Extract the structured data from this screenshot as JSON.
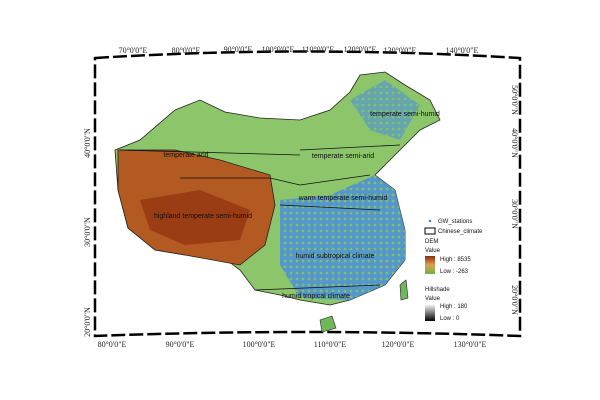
{
  "graticule": {
    "top": [
      "70°0'0\"E",
      "80°0'0\"E",
      "90°0'0\"E",
      "100°0'0\"E",
      "110°0'0\"E",
      "120°0'0\"E",
      "130°0'0\"E",
      "140°0'0\"E"
    ],
    "bottom": [
      "80°0'0\"E",
      "90°0'0\"E",
      "100°0'0\"E",
      "110°0'0\"E",
      "120°0'0\"E",
      "130°0'0\"E"
    ],
    "left": [
      "40°0'0\"N",
      "30°0'0\"N",
      "20°0'0\"N"
    ],
    "right": [
      "50°0'0\"N",
      "40°0'0\"N",
      "30°0'0\"N",
      "20°0'0\"N"
    ]
  },
  "regions": [
    "temperate semi-humid",
    "temperate arid",
    "temperate semi-arid",
    "warm temperate semi-humid",
    "highland temperate semi-humid",
    "humid subtropical climate",
    "humid tropical climate"
  ],
  "legend": {
    "stations": "GW_stations",
    "climate": "Chinese_climate",
    "dem": {
      "title": "DEM",
      "value": "Value",
      "high": "High : 8535",
      "low": "Low : -263"
    },
    "hillshade": {
      "title": "Hillshade",
      "value": "Value",
      "high": "High : 180",
      "low": "Low : 0"
    }
  }
}
